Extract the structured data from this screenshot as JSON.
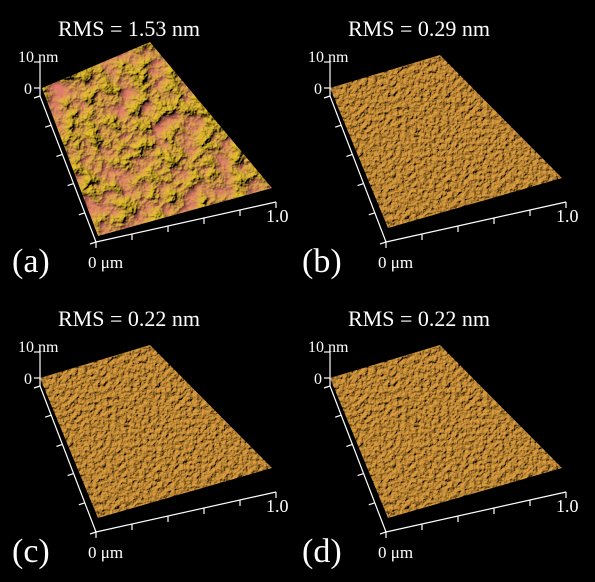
{
  "panels": [
    {
      "label": "(a)",
      "rms": "RMS = 1.53 nm",
      "z_top": "10 nm",
      "z_zero": "0",
      "x_start": "0 μm",
      "x_end": "1.0"
    },
    {
      "label": "(b)",
      "rms": "RMS = 0.29 nm",
      "z_top": "10 nm",
      "z_zero": "0",
      "x_start": "0 μm",
      "x_end": "1.0"
    },
    {
      "label": "(c)",
      "rms": "RMS = 0.22 nm",
      "z_top": "10 nm",
      "z_zero": "0",
      "x_start": "0 μm",
      "x_end": "1.0"
    },
    {
      "label": "(d)",
      "rms": "RMS = 0.22 nm",
      "z_top": "10 nm",
      "z_zero": "0",
      "x_start": "0 μm",
      "x_end": "1.0"
    }
  ]
}
